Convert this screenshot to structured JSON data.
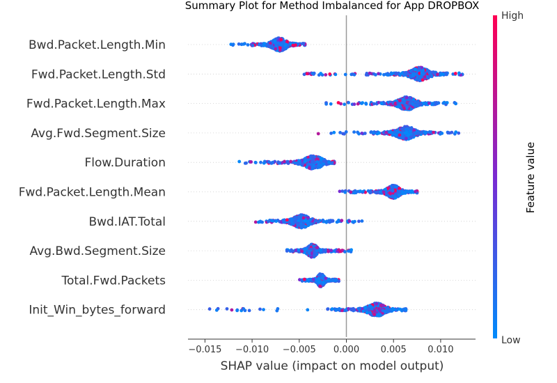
{
  "chart_data": {
    "type": "scatter",
    "title": "Summary Plot for Method Imbalanced for App DROPBOX",
    "xlabel": "SHAP value (impact on model output)",
    "ylabel": "",
    "xlim": [
      -0.0168,
      0.0137
    ],
    "xticks": [
      -0.015,
      -0.01,
      -0.005,
      0.0,
      0.005,
      0.01
    ],
    "xtick_labels": [
      "−0.015",
      "−0.010",
      "−0.005",
      "0.000",
      "0.005",
      "0.010"
    ],
    "grid": "horizontal-dotted",
    "colorbar": {
      "title": "Feature value",
      "high_label": "High",
      "low_label": "Low",
      "low_color": "#008bfb",
      "high_color": "#ff0052"
    },
    "features": [
      {
        "name": "Bwd.Packet.Length.Min",
        "min": -0.0125,
        "max": -0.0044,
        "center": -0.0071,
        "spread": 0.0017
      },
      {
        "name": "Fwd.Packet.Length.Std",
        "min": -0.0045,
        "max": 0.0123,
        "center": 0.0078,
        "spread": 0.0022
      },
      {
        "name": "Fwd.Packet.Length.Max",
        "min": -0.0028,
        "max": 0.0116,
        "center": 0.0064,
        "spread": 0.002
      },
      {
        "name": "Avg.Fwd.Segment.Size",
        "min": -0.0032,
        "max": 0.0122,
        "center": 0.0063,
        "spread": 0.0022
      },
      {
        "name": "Flow.Duration",
        "min": -0.0115,
        "max": -0.0013,
        "center": -0.0035,
        "spread": 0.0022
      },
      {
        "name": "Fwd.Packet.Length.Mean",
        "min": -0.0008,
        "max": 0.0075,
        "center": 0.005,
        "spread": 0.0015
      },
      {
        "name": "Bwd.IAT.Total",
        "min": -0.0098,
        "max": 0.0028,
        "center": -0.0048,
        "spread": 0.002
      },
      {
        "name": "Avg.Bwd.Segment.Size",
        "min": -0.0063,
        "max": 0.0008,
        "center": -0.0036,
        "spread": 0.0012
      },
      {
        "name": "Total.Fwd.Packets",
        "min": -0.005,
        "max": -0.0008,
        "center": -0.0027,
        "spread": 0.0008
      },
      {
        "name": "Init_Win_bytes_forward",
        "min": -0.0155,
        "max": 0.0063,
        "center": 0.0032,
        "spread": 0.002
      }
    ]
  }
}
